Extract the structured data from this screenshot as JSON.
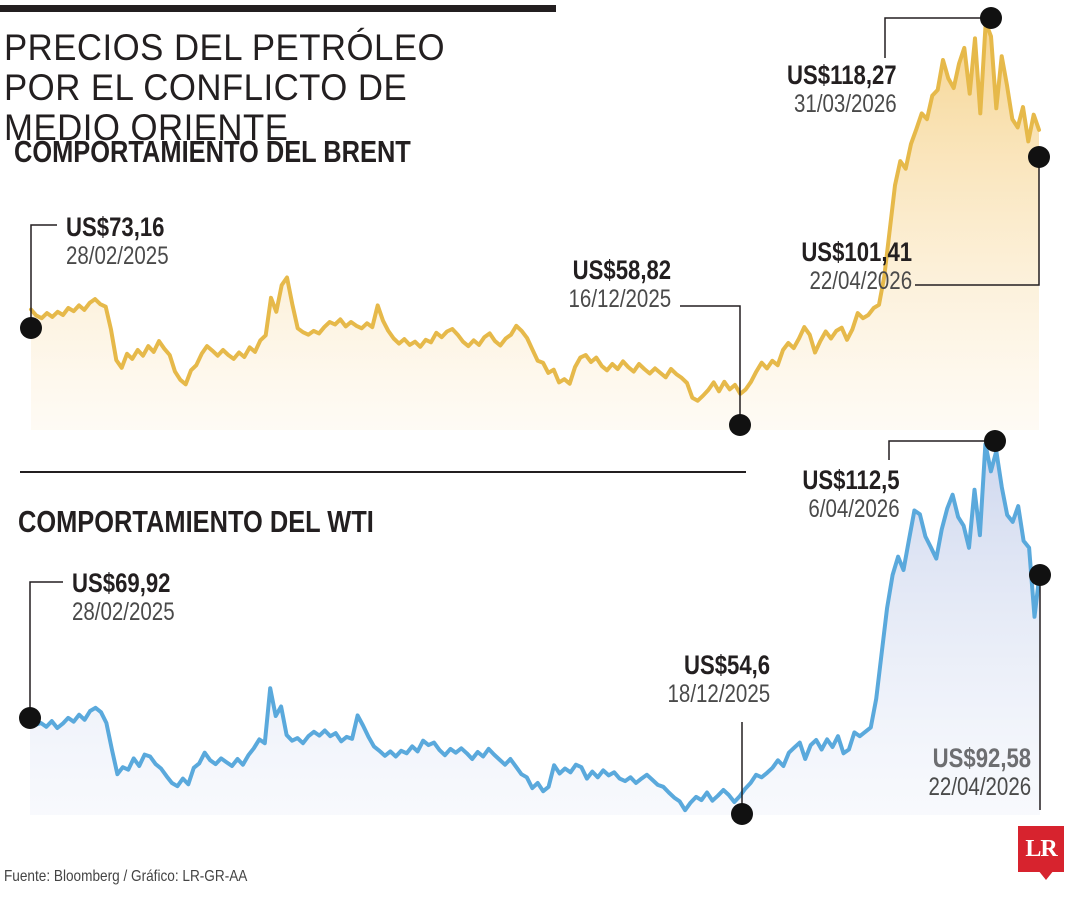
{
  "header": {
    "title": "PRECIOS DEL PETRÓLEO POR EL CONFLICTO DE MEDIO ORIENTE"
  },
  "footer": {
    "source": "Fuente: Bloomberg / Gráfico: LR-GR-AA",
    "logo_text": "LR"
  },
  "colors": {
    "brent": "#e6b94a",
    "wti": "#5aa9dc",
    "text": "#231f20"
  },
  "chart_data": [
    {
      "type": "line",
      "title": "COMPORTAMIENTO DEL BRENT",
      "x_range": [
        "28/02/2025",
        "22/04/2026"
      ],
      "ylim": [
        55,
        119
      ],
      "color": "#e6b94a",
      "series": [
        {
          "values": [
            73.16,
            72.2,
            71.8,
            72.6,
            72.0,
            72.8,
            72.3,
            73.4,
            72.9,
            73.8,
            73.1,
            74.2,
            74.8,
            74.0,
            73.6,
            70.0,
            65.2,
            64.0,
            66.2,
            65.4,
            66.8,
            65.9,
            67.4,
            66.5,
            68.2,
            67.0,
            66.0,
            63.4,
            62.1,
            61.4,
            63.6,
            64.4,
            66.2,
            67.4,
            66.7,
            65.9,
            66.8,
            66.0,
            65.4,
            66.4,
            65.7,
            67.2,
            66.5,
            68.3,
            69.1,
            75.0,
            72.8,
            77.0,
            78.2,
            74.0,
            70.2,
            69.6,
            69.2,
            69.8,
            69.4,
            70.4,
            71.2,
            70.8,
            71.6,
            70.5,
            71.2,
            70.6,
            70.2,
            71.0,
            70.4,
            73.8,
            71.4,
            69.8,
            68.6,
            67.8,
            68.5,
            67.6,
            68.1,
            67.3,
            68.4,
            68.0,
            69.5,
            68.8,
            69.7,
            70.1,
            69.2,
            68.1,
            67.4,
            68.3,
            67.6,
            68.8,
            69.4,
            68.2,
            67.5,
            68.6,
            69.2,
            70.6,
            69.8,
            68.7,
            66.9,
            65.1,
            64.8,
            63.2,
            63.7,
            61.7,
            62.2,
            61.5,
            64.1,
            65.6,
            66.0,
            64.9,
            65.6,
            64.3,
            63.6,
            64.6,
            63.8,
            65.0,
            64.1,
            63.4,
            64.6,
            63.8,
            63.1,
            63.9,
            63.2,
            62.5,
            63.8,
            63.0,
            62.4,
            61.6,
            59.3,
            58.82,
            59.6,
            60.5,
            61.7,
            60.3,
            61.8,
            60.6,
            61.3,
            59.9,
            60.6,
            61.8,
            63.4,
            64.8,
            63.9,
            65.1,
            64.4,
            66.8,
            67.9,
            67.1,
            68.6,
            70.4,
            69.2,
            66.4,
            68.2,
            69.7,
            68.6,
            69.8,
            70.3,
            68.4,
            70.0,
            72.6,
            71.8,
            72.3,
            73.4,
            73.9,
            78.4,
            85.6,
            92.7,
            96.5,
            95.3,
            99.2,
            101.5,
            104.0,
            103.1,
            106.8,
            107.7,
            112.4,
            109.5,
            108.0,
            111.8,
            114.3,
            107.1,
            115.8,
            104.0,
            118.27,
            116.1,
            104.8,
            113.0,
            108.4,
            103.1,
            101.8,
            105.0,
            99.6,
            103.8,
            101.41
          ]
        }
      ],
      "annotations": [
        {
          "value": "US$73,16",
          "date": "28/02/2025"
        },
        {
          "value": "US$58,82",
          "date": "16/12/2025"
        },
        {
          "value": "US$118,27",
          "date": "31/03/2026"
        },
        {
          "value": "US$101,41",
          "date": "22/04/2026"
        }
      ]
    },
    {
      "type": "line",
      "title": "COMPORTAMIENTO DEL WTI",
      "x_range": [
        "28/02/2025",
        "18/12/2025",
        "22/04/2026"
      ],
      "ylim": [
        54,
        113
      ],
      "color": "#5aa9dc",
      "series": [
        {
          "values": [
            69.92,
            68.1,
            68.4,
            67.8,
            68.7,
            67.6,
            68.3,
            69.2,
            68.6,
            69.7,
            68.9,
            70.3,
            70.8,
            70.1,
            68.4,
            64.2,
            60.3,
            61.4,
            61.0,
            62.8,
            61.6,
            63.4,
            63.1,
            61.9,
            61.2,
            60.0,
            58.9,
            58.4,
            59.6,
            58.7,
            61.3,
            62.0,
            63.7,
            62.5,
            61.9,
            62.8,
            62.2,
            61.6,
            62.7,
            61.8,
            63.3,
            64.4,
            65.8,
            65.2,
            73.9,
            69.5,
            71.0,
            66.5,
            65.6,
            66.0,
            65.2,
            66.3,
            67.0,
            66.4,
            67.2,
            66.3,
            66.8,
            65.5,
            66.2,
            65.9,
            69.6,
            68.0,
            66.2,
            64.7,
            64.0,
            63.2,
            63.9,
            63.1,
            64.0,
            63.6,
            64.7,
            63.9,
            65.6,
            64.9,
            65.3,
            64.1,
            63.3,
            64.3,
            63.7,
            64.4,
            63.6,
            62.7,
            63.8,
            63.1,
            64.3,
            63.4,
            62.6,
            61.8,
            62.7,
            61.5,
            60.3,
            59.8,
            58.1,
            58.9,
            57.6,
            58.3,
            61.7,
            60.4,
            61.2,
            60.6,
            61.8,
            61.4,
            59.6,
            60.7,
            59.8,
            60.9,
            60.1,
            60.6,
            59.6,
            59.2,
            59.8,
            58.9,
            59.6,
            60.2,
            59.4,
            58.6,
            58.3,
            57.4,
            56.6,
            56.0,
            54.6,
            55.8,
            56.7,
            56.2,
            57.4,
            56.1,
            56.9,
            57.8,
            57.0,
            55.9,
            56.8,
            58.0,
            58.9,
            60.2,
            59.8,
            60.5,
            61.3,
            62.5,
            61.6,
            63.7,
            64.5,
            65.3,
            62.7,
            64.9,
            65.7,
            64.2,
            65.8,
            64.6,
            66.3,
            63.6,
            64.2,
            66.9,
            66.3,
            67.0,
            67.7,
            72.2,
            79.5,
            86.6,
            91.8,
            94.7,
            92.6,
            97.4,
            102.0,
            101.4,
            97.9,
            96.2,
            94.4,
            99.0,
            102.3,
            104.5,
            101.0,
            99.6,
            96.1,
            105.3,
            98.1,
            112.5,
            108.2,
            111.4,
            105.7,
            101.3,
            100.2,
            102.7,
            97.2,
            96.1,
            85.2,
            92.58
          ]
        }
      ],
      "annotations": [
        {
          "value": "US$69,92",
          "date": "28/02/2025"
        },
        {
          "value": "US$54,6",
          "date": "18/12/2025"
        },
        {
          "value": "US$112,5",
          "date": "6/04/2026"
        },
        {
          "value": "US$92,58",
          "date": "22/04/2026"
        }
      ]
    }
  ]
}
